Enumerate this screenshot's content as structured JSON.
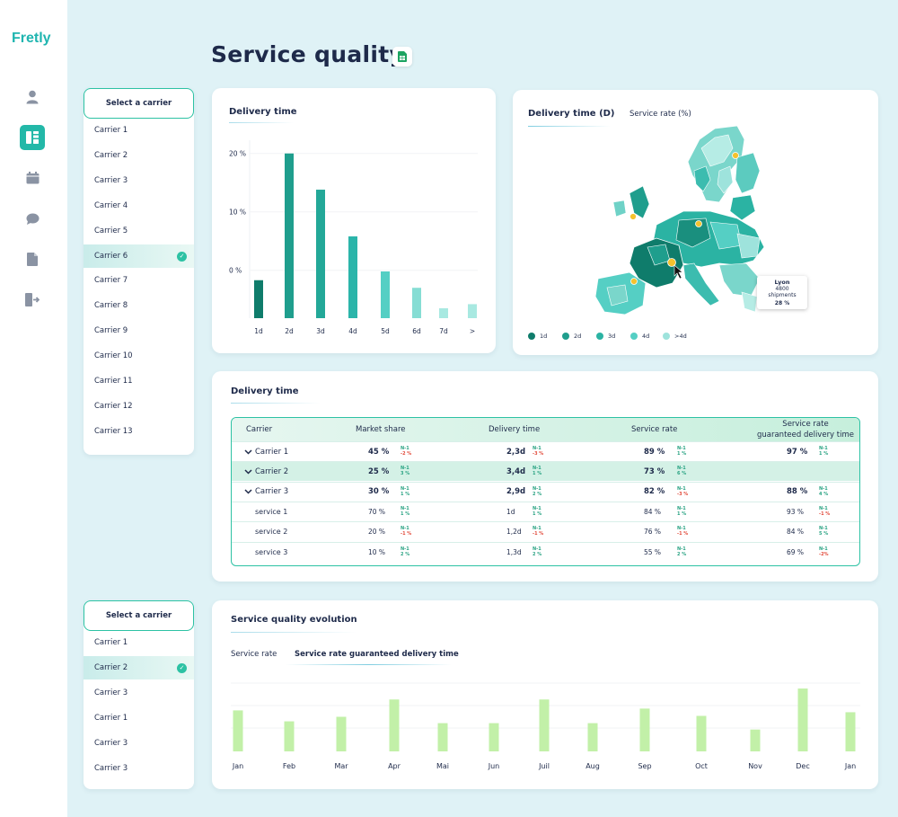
{
  "app": {
    "logo": "Fretly"
  },
  "nav": [
    {
      "icon": "user-icon"
    },
    {
      "icon": "dashboard-icon",
      "active": true
    },
    {
      "icon": "calendar-icon"
    },
    {
      "icon": "chat-icon"
    },
    {
      "icon": "document-icon"
    },
    {
      "icon": "logout-icon"
    }
  ],
  "page": {
    "title": "Service quality"
  },
  "carrier_panel_1": {
    "header": "Select a carrier",
    "items": [
      "Carrier 1",
      "Carrier 2",
      "Carrier 3",
      "Carrier 4",
      "Carrier 5",
      "Carrier 6",
      "Carrier 7",
      "Carrier 8",
      "Carrier 9",
      "Carrier 10",
      "Carrier 11",
      "Carrier 12",
      "Carrier 13"
    ],
    "selected_index": 5
  },
  "carrier_panel_2": {
    "header": "Select a carrier",
    "items": [
      "Carrier 1",
      "Carrier 2",
      "Carrier 3",
      "Carrier 1",
      "Carrier 3",
      "Carrier 3"
    ],
    "selected_index": 1
  },
  "delivery_chart": {
    "title": "Delivery time",
    "chart_data": {
      "type": "bar",
      "categories": [
        "1d",
        "2d",
        "3d",
        "4d",
        "5d",
        "6d",
        "7d",
        ">"
      ],
      "yticks": [
        "20 %",
        "10 %",
        "0 %"
      ],
      "values": [
        -1.7,
        20.0,
        13.8,
        5.8,
        -0.2,
        -3.0,
        -6.5,
        -5.8
      ],
      "ylim": [
        -8.2,
        23.5
      ],
      "colors": [
        "#0f7c6b",
        "#1f9e8d",
        "#23a898",
        "#2bb5aa",
        "#55cfc4",
        "#86ddd4",
        "#a8e9e1",
        "#a8e9e1"
      ]
    }
  },
  "map_card": {
    "tabs": [
      "Delivery time (D)",
      "Service rate (%)"
    ],
    "tooltip": {
      "city": "Lyon",
      "shipments": "4800 shipments",
      "rate": "28 %"
    },
    "legend": [
      {
        "label": "1d",
        "color": "#0f7c6b"
      },
      {
        "label": "2d",
        "color": "#1f9e8d"
      },
      {
        "label": "3d",
        "color": "#2bb3a3"
      },
      {
        "label": "4d",
        "color": "#55cfc4"
      },
      {
        "label": ">4d",
        "color": "#9ee3dc"
      }
    ]
  },
  "table_card": {
    "title": "Delivery time",
    "columns": [
      "Carrier",
      "Market share",
      "Delivery time",
      "Service rate",
      "Service rate",
      "guaranteed delivery time"
    ],
    "n_label": "N-1",
    "rows": [
      {
        "name": "Carrier 1",
        "expand": true,
        "hl": false,
        "bold": true,
        "ms": "45 %",
        "ms_n": "-2 %",
        "ms_neg": true,
        "dt": "2,3d",
        "dt_n": "-3 %",
        "dt_neg": true,
        "sr": "89 %",
        "sr_n": "1 %",
        "sr_neg": false,
        "sg": "97 %",
        "sg_n": "1 %",
        "sg_neg": false
      },
      {
        "name": "Carrier 2",
        "expand": true,
        "hl": true,
        "bold": true,
        "ms": "25 %",
        "ms_n": "3 %",
        "ms_neg": false,
        "dt": "3,4d",
        "dt_n": "1 %",
        "dt_neg": false,
        "sr": "73 %",
        "sr_n": "6 %",
        "sr_neg": false,
        "sg": "",
        "sg_n": "",
        "sg_neg": false
      },
      {
        "name": "Carrier 3",
        "expand": true,
        "hl": false,
        "bold": true,
        "ms": "30 %",
        "ms_n": "1 %",
        "ms_neg": false,
        "dt": "2,9d",
        "dt_n": "2 %",
        "dt_neg": false,
        "sr": "82 %",
        "sr_n": "-3 %",
        "sr_neg": true,
        "sg": "88 %",
        "sg_n": "4 %",
        "sg_neg": false
      },
      {
        "name": "service 1",
        "expand": false,
        "hl": false,
        "bold": false,
        "ms": "70 %",
        "ms_n": "1 %",
        "ms_neg": false,
        "dt": "1d",
        "dt_n": "1 %",
        "dt_neg": false,
        "sr": "84 %",
        "sr_n": "1 %",
        "sr_neg": false,
        "sg": "93 %",
        "sg_n": "-1 %",
        "sg_neg": true
      },
      {
        "name": "service 2",
        "expand": false,
        "hl": false,
        "bold": false,
        "ms": "20 %",
        "ms_n": "-1 %",
        "ms_neg": true,
        "dt": "1,2d",
        "dt_n": "-1 %",
        "dt_neg": true,
        "sr": "76 %",
        "sr_n": "-1 %",
        "sr_neg": true,
        "sg": "84 %",
        "sg_n": "5 %",
        "sg_neg": false
      },
      {
        "name": "service 3",
        "expand": false,
        "hl": false,
        "bold": false,
        "ms": "10 %",
        "ms_n": "2 %",
        "ms_neg": false,
        "dt": "1,3d",
        "dt_n": "2 %",
        "dt_neg": false,
        "sr": "55 %",
        "sr_n": "2 %",
        "sr_neg": false,
        "sg": "69 %",
        "sg_n": "-2%",
        "sg_neg": true
      }
    ]
  },
  "evolution_card": {
    "title": "Service quality evolution",
    "tabs": [
      "Service rate",
      "Service rate guaranteed delivery time"
    ],
    "chart_data": {
      "type": "bar",
      "categories": [
        "Jan",
        "Feb",
        "Mar",
        "Apr",
        "Mai",
        "Jun",
        "Juil",
        "Aug",
        "Sep",
        "Oct",
        "Nov",
        "Dec",
        "Jan"
      ],
      "values": [
        45,
        33,
        38,
        57,
        31,
        31,
        57,
        31,
        47,
        39,
        24,
        69,
        43
      ],
      "ylim": [
        0,
        75
      ],
      "color": "#c2f0a8"
    }
  }
}
